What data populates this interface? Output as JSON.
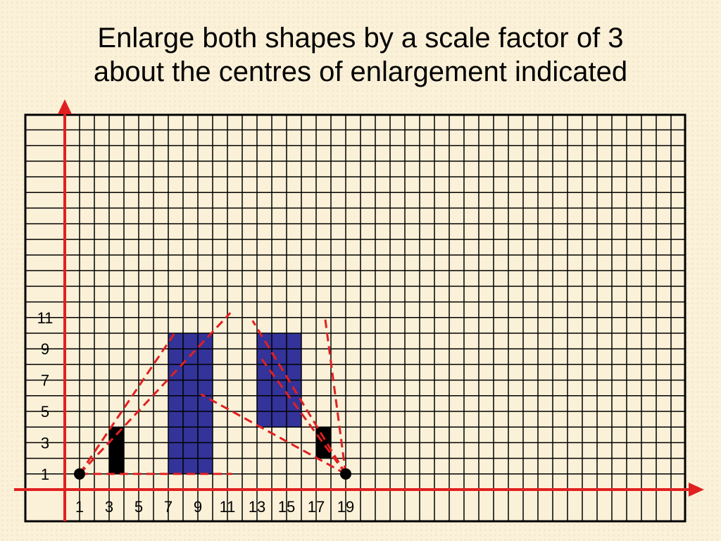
{
  "title": {
    "line1": "Enlarge both shapes by a scale factor of 3",
    "line2": "about the centres of enlargement indicated"
  },
  "grid": {
    "x_ticks": [
      "1",
      "3",
      "5",
      "7",
      "9",
      "11",
      "13",
      "15",
      "17",
      "19"
    ],
    "y_ticks": [
      "11",
      "9",
      "7",
      "5",
      "3",
      "1"
    ]
  },
  "colors": {
    "axis": "#e02020",
    "grid": "#000000",
    "enlarged_fill": "#333399",
    "original_fill": "#000000",
    "construction_line": "#e02020",
    "background": "#fbf1d8"
  },
  "shapes": {
    "left_original": {
      "x1": 3,
      "x2": 4,
      "y1": 1,
      "y2": 4
    },
    "left_enlarged": {
      "x1": 7,
      "x2": 10,
      "y1": 1,
      "y2": 10
    },
    "right_original": {
      "x1": 17,
      "x2": 18,
      "y1": 2,
      "y2": 4
    },
    "right_enlarged": {
      "x1": 13,
      "x2": 16,
      "y1": 4,
      "y2": 10
    },
    "centre_left": {
      "x": 1,
      "y": 1
    },
    "centre_right": {
      "x": 19,
      "y": 1
    }
  },
  "construction_lines": [
    {
      "from": [
        1,
        1
      ],
      "to": [
        7.5,
        10.1
      ]
    },
    {
      "from": [
        1,
        1
      ],
      "to": [
        11.2,
        11.3
      ]
    },
    {
      "from": [
        1,
        1
      ],
      "to": [
        11.3,
        1
      ]
    },
    {
      "from": [
        19,
        1
      ],
      "to": [
        12.7,
        10.8
      ]
    },
    {
      "from": [
        19,
        1
      ],
      "to": [
        17.6,
        11
      ]
    },
    {
      "from": [
        19,
        1
      ],
      "to": [
        13.2,
        8.5
      ]
    },
    {
      "from": [
        19,
        1
      ],
      "to": [
        9.2,
        6.1
      ]
    }
  ]
}
